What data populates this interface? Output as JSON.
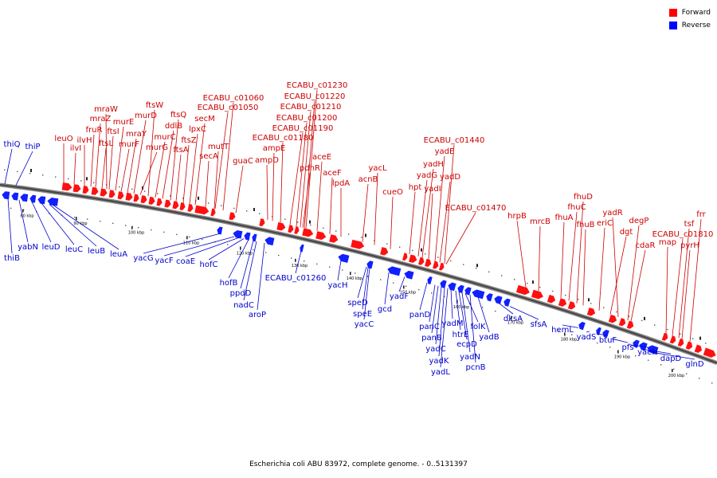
{
  "caption": "Escherichia coli ABU 83972, complete genome. - 0..5131397",
  "legend": {
    "forward": {
      "label": "Forward",
      "color": "#ff0000"
    },
    "reverse": {
      "label": "Reverse",
      "color": "#0000ff"
    }
  },
  "colors": {
    "backbone": "#666666",
    "forward_label": "#cc0000",
    "reverse_label": "#0000cc",
    "forward_gene": "#ff1010",
    "reverse_gene": "#1020ff"
  },
  "scale": {
    "unit": "kbp",
    "ticks": [
      80,
      90,
      100,
      110,
      120,
      130,
      140,
      150,
      160,
      170,
      180,
      190,
      200
    ]
  },
  "forward_labels": [
    "leuO",
    "ilvI",
    "ilvH",
    "fruR",
    "mraZ",
    "ftsL",
    "mraW",
    "ftsI",
    "murE",
    "murF",
    "mraY",
    "murD",
    "murG",
    "ftsW",
    "murC",
    "ddlB",
    "ftsQ",
    "ftsA",
    "ftsZ",
    "lpxC",
    "secM",
    "secA",
    "mutT",
    "ECABU_c01050",
    "ECABU_c01060",
    "guaC",
    "ampD",
    "ampE",
    "ECABU_c01180",
    "ECABU_c01190",
    "ECABU_c01200",
    "ECABU_c01210",
    "ECABU_c01220",
    "ECABU_c01230",
    "pdhR",
    "aceE",
    "aceF",
    "lpdA",
    "acnB",
    "yacL",
    "cueO",
    "hpt",
    "yadG",
    "yadH",
    "yadI",
    "yadE",
    "yadD",
    "ECABU_c01440",
    "ECABU_c01470",
    "hrpB",
    "mrcB",
    "fhuA",
    "fhuC",
    "fhuD",
    "fhuB",
    "eriC",
    "dgt",
    "yadR",
    "degP",
    "cdaR",
    "map",
    "ECABU_c01810",
    "tsf",
    "pyrH",
    "frr"
  ],
  "reverse_labels": [
    "thiQ",
    "thiP",
    "thiB",
    "yabN",
    "leuD",
    "leuC",
    "leuB",
    "leuA",
    "yacG",
    "yacF",
    "coaE",
    "hofC",
    "hofB",
    "ppdD",
    "nadC",
    "aroP",
    "ECABU_c01260",
    "yacH",
    "speD",
    "speE",
    "yacC",
    "gcd",
    "yadF",
    "panD",
    "panC",
    "panB",
    "yadC",
    "yadK",
    "yadL",
    "yadM",
    "htrE",
    "ecpD",
    "yadN",
    "folK",
    "pcnB",
    "yadB",
    "dksA",
    "sfsA",
    "hemL",
    "yadS",
    "btuF",
    "pfs",
    "yaeH",
    "dapD",
    "glnD"
  ]
}
